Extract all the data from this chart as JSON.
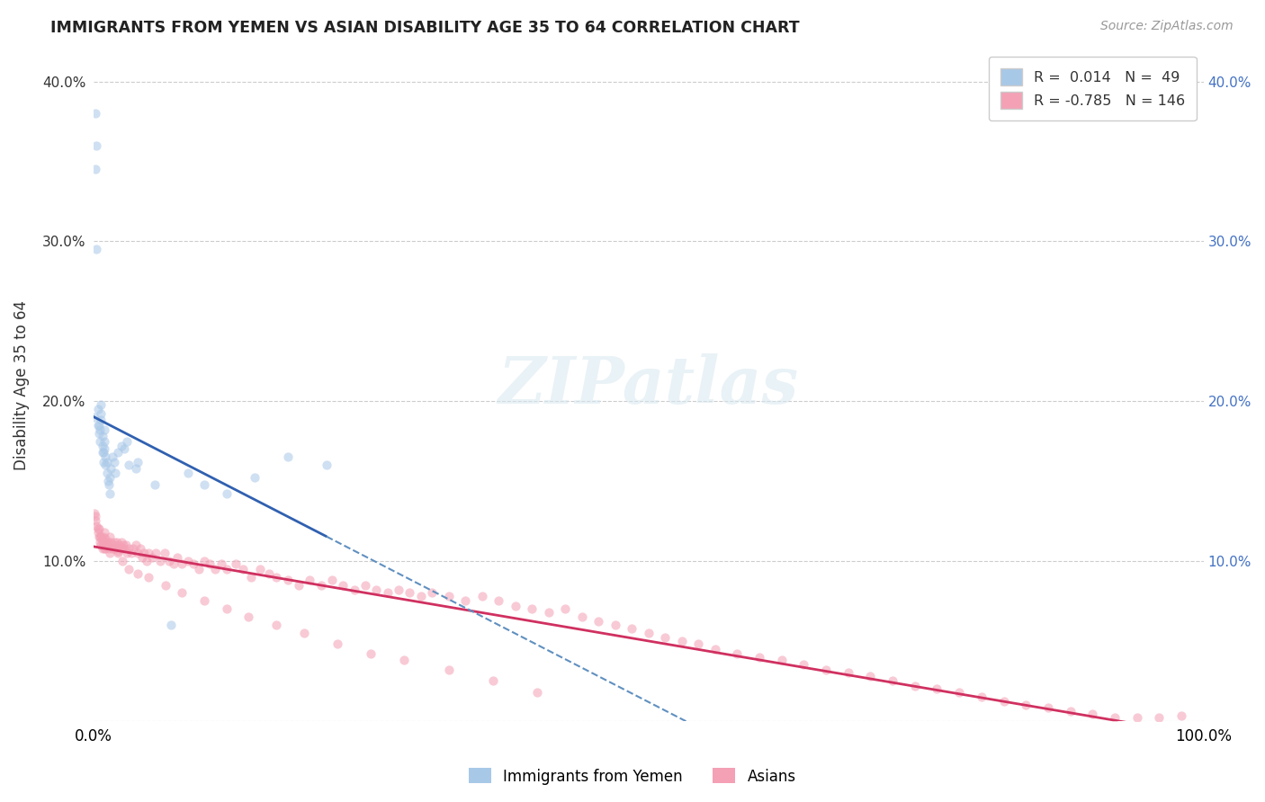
{
  "title": "IMMIGRANTS FROM YEMEN VS ASIAN DISABILITY AGE 35 TO 64 CORRELATION CHART",
  "source_text": "Source: ZipAtlas.com",
  "ylabel": "Disability Age 35 to 64",
  "legend_labels": [
    "Immigrants from Yemen",
    "Asians"
  ],
  "r_yemen": 0.014,
  "n_yemen": 49,
  "r_asian": -0.785,
  "n_asian": 146,
  "xlim": [
    0.0,
    1.0
  ],
  "ylim": [
    0.0,
    0.42
  ],
  "yticks": [
    0.0,
    0.1,
    0.2,
    0.3,
    0.4
  ],
  "xtick_left": "0.0%",
  "xtick_right": "100.0%",
  "ytick_labels": [
    "",
    "10.0%",
    "20.0%",
    "30.0%",
    "40.0%"
  ],
  "ytick_labels_right": [
    "",
    "10.0%",
    "20.0%",
    "30.0%",
    "40.0%"
  ],
  "color_yemen": "#a8c8e8",
  "color_asian": "#f4a0b5",
  "line_color_yemen": "#3060b0",
  "line_color_asian": "#d03060",
  "line_color_yemen_dashed": "#6090c0",
  "background_color": "#ffffff",
  "grid_color": "#cccccc",
  "scatter_alpha": 0.55,
  "scatter_size": 55,
  "yemen_x": [
    0.001,
    0.002,
    0.002,
    0.003,
    0.003,
    0.004,
    0.004,
    0.005,
    0.005,
    0.006,
    0.006,
    0.007,
    0.007,
    0.007,
    0.008,
    0.008,
    0.008,
    0.009,
    0.009,
    0.01,
    0.01,
    0.01,
    0.011,
    0.011,
    0.012,
    0.012,
    0.013,
    0.014,
    0.015,
    0.015,
    0.016,
    0.017,
    0.019,
    0.02,
    0.022,
    0.025,
    0.028,
    0.03,
    0.032,
    0.038,
    0.04,
    0.055,
    0.07,
    0.085,
    0.1,
    0.12,
    0.145,
    0.175,
    0.21
  ],
  "yemen_y": [
    0.19,
    0.38,
    0.345,
    0.36,
    0.295,
    0.185,
    0.195,
    0.18,
    0.185,
    0.175,
    0.182,
    0.188,
    0.192,
    0.198,
    0.168,
    0.172,
    0.178,
    0.162,
    0.168,
    0.17,
    0.175,
    0.182,
    0.16,
    0.165,
    0.155,
    0.162,
    0.15,
    0.148,
    0.142,
    0.152,
    0.158,
    0.165,
    0.162,
    0.155,
    0.168,
    0.172,
    0.17,
    0.175,
    0.16,
    0.158,
    0.162,
    0.148,
    0.06,
    0.155,
    0.148,
    0.142,
    0.152,
    0.165,
    0.16
  ],
  "asian_x": [
    0.001,
    0.002,
    0.003,
    0.004,
    0.005,
    0.005,
    0.006,
    0.007,
    0.007,
    0.008,
    0.008,
    0.009,
    0.009,
    0.01,
    0.01,
    0.011,
    0.011,
    0.012,
    0.013,
    0.014,
    0.015,
    0.016,
    0.017,
    0.018,
    0.019,
    0.02,
    0.021,
    0.022,
    0.023,
    0.024,
    0.025,
    0.026,
    0.027,
    0.028,
    0.029,
    0.03,
    0.032,
    0.034,
    0.036,
    0.038,
    0.04,
    0.042,
    0.044,
    0.046,
    0.048,
    0.05,
    0.053,
    0.056,
    0.06,
    0.064,
    0.068,
    0.072,
    0.076,
    0.08,
    0.085,
    0.09,
    0.095,
    0.1,
    0.105,
    0.11,
    0.115,
    0.12,
    0.128,
    0.135,
    0.142,
    0.15,
    0.158,
    0.165,
    0.175,
    0.185,
    0.195,
    0.205,
    0.215,
    0.225,
    0.235,
    0.245,
    0.255,
    0.265,
    0.275,
    0.285,
    0.295,
    0.305,
    0.32,
    0.335,
    0.35,
    0.365,
    0.38,
    0.395,
    0.41,
    0.425,
    0.44,
    0.455,
    0.47,
    0.485,
    0.5,
    0.515,
    0.53,
    0.545,
    0.56,
    0.58,
    0.6,
    0.62,
    0.64,
    0.66,
    0.68,
    0.7,
    0.72,
    0.74,
    0.76,
    0.78,
    0.8,
    0.82,
    0.84,
    0.86,
    0.88,
    0.9,
    0.92,
    0.94,
    0.96,
    0.98,
    0.002,
    0.004,
    0.006,
    0.008,
    0.01,
    0.012,
    0.015,
    0.018,
    0.022,
    0.026,
    0.032,
    0.04,
    0.05,
    0.065,
    0.08,
    0.1,
    0.12,
    0.14,
    0.165,
    0.19,
    0.22,
    0.25,
    0.28,
    0.32,
    0.36,
    0.4
  ],
  "asian_y": [
    0.13,
    0.125,
    0.122,
    0.118,
    0.115,
    0.12,
    0.112,
    0.11,
    0.115,
    0.108,
    0.114,
    0.11,
    0.115,
    0.112,
    0.118,
    0.108,
    0.114,
    0.11,
    0.112,
    0.108,
    0.115,
    0.112,
    0.108,
    0.11,
    0.112,
    0.108,
    0.112,
    0.106,
    0.11,
    0.108,
    0.112,
    0.108,
    0.11,
    0.108,
    0.11,
    0.105,
    0.108,
    0.105,
    0.108,
    0.11,
    0.105,
    0.108,
    0.102,
    0.105,
    0.1,
    0.105,
    0.102,
    0.105,
    0.1,
    0.105,
    0.1,
    0.098,
    0.102,
    0.098,
    0.1,
    0.098,
    0.095,
    0.1,
    0.098,
    0.095,
    0.098,
    0.095,
    0.098,
    0.095,
    0.09,
    0.095,
    0.092,
    0.09,
    0.088,
    0.085,
    0.088,
    0.085,
    0.088,
    0.085,
    0.082,
    0.085,
    0.082,
    0.08,
    0.082,
    0.08,
    0.078,
    0.08,
    0.078,
    0.075,
    0.078,
    0.075,
    0.072,
    0.07,
    0.068,
    0.07,
    0.065,
    0.062,
    0.06,
    0.058,
    0.055,
    0.052,
    0.05,
    0.048,
    0.045,
    0.042,
    0.04,
    0.038,
    0.035,
    0.032,
    0.03,
    0.028,
    0.025,
    0.022,
    0.02,
    0.018,
    0.015,
    0.012,
    0.01,
    0.008,
    0.006,
    0.004,
    0.002,
    0.002,
    0.002,
    0.003,
    0.128,
    0.12,
    0.115,
    0.112,
    0.108,
    0.11,
    0.105,
    0.108,
    0.105,
    0.1,
    0.095,
    0.092,
    0.09,
    0.085,
    0.08,
    0.075,
    0.07,
    0.065,
    0.06,
    0.055,
    0.048,
    0.042,
    0.038,
    0.032,
    0.025,
    0.018
  ],
  "watermark_text": "ZIPatlas",
  "legend_R_color": "#3060b0",
  "legend_R2_color": "#d03060"
}
